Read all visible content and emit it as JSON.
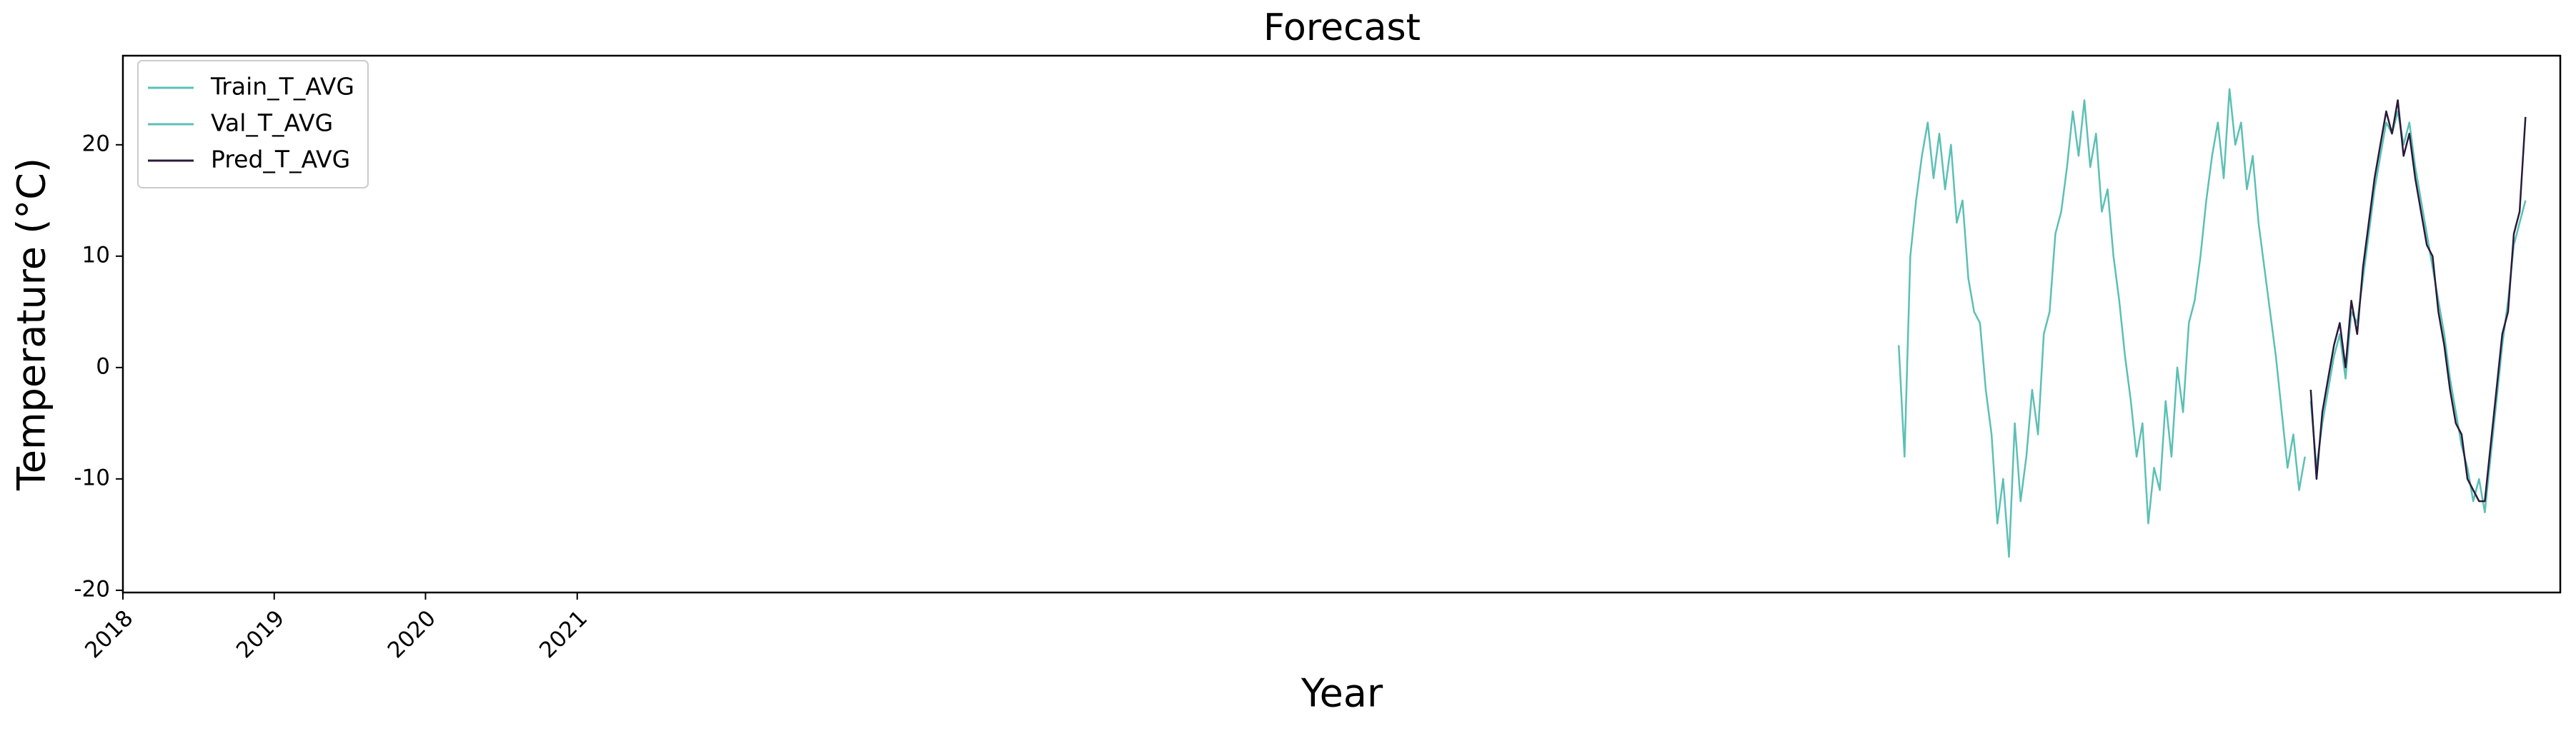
{
  "chart_data": {
    "type": "line",
    "title": "Forecast",
    "x_label": "Year",
    "y_label": "Temperature (°C)",
    "xlim": [
      0,
      5880
    ],
    "xticks": [
      {
        "value": 0,
        "label": "2018"
      },
      {
        "value": 365,
        "label": "2019"
      },
      {
        "value": 730,
        "label": "2020"
      },
      {
        "value": 1096,
        "label": "2021"
      }
    ],
    "ylim": [
      -20.2,
      28
    ],
    "yticks": [
      -20,
      -10,
      0,
      10,
      20
    ],
    "grid": false,
    "legend": "upper left",
    "series": [
      {
        "name": "Train_T_AVG",
        "color": "#5bc0b5",
        "x": [
          4284,
          4298,
          4312,
          4326,
          4340,
          4354,
          4368,
          4382,
          4396,
          4410,
          4424,
          4438,
          4452,
          4466,
          4480,
          4494,
          4508,
          4522,
          4536,
          4550,
          4564,
          4578,
          4592,
          4606,
          4620,
          4634,
          4648,
          4662,
          4676,
          4690,
          4704,
          4718,
          4732,
          4746,
          4760,
          4774,
          4788,
          4802,
          4816,
          4830,
          4844,
          4858,
          4872,
          4886,
          4900,
          4914,
          4928,
          4942,
          4956,
          4970,
          4984,
          4998,
          5012,
          5026,
          5040,
          5054,
          5068,
          5082,
          5096,
          5110,
          5124,
          5138,
          5152,
          5166,
          5180,
          5194,
          5208,
          5222,
          5236,
          5250,
          5264
        ],
        "values": [
          2,
          -8,
          10,
          15,
          19,
          22,
          17,
          21,
          16,
          20,
          13,
          15,
          8,
          5,
          4,
          -2,
          -6,
          -14,
          -10,
          -17,
          -5,
          -12,
          -8,
          -2,
          -6,
          3,
          5,
          12,
          14,
          18,
          23,
          19,
          24,
          18,
          21,
          14,
          16,
          10,
          6,
          1,
          -3,
          -8,
          -5,
          -14,
          -9,
          -11,
          -3,
          -8,
          0,
          -4,
          4,
          6,
          10,
          15,
          19,
          22,
          17,
          25,
          20,
          22,
          16,
          19,
          13,
          9,
          5,
          1,
          -4,
          -9,
          -6,
          -11,
          -8
        ]
      },
      {
        "name": "Val_T_AVG",
        "color": "#5bc0b5",
        "x": [
          5278,
          5292,
          5306,
          5320,
          5334,
          5348,
          5362,
          5376,
          5390,
          5404,
          5418,
          5432,
          5446,
          5460,
          5474,
          5488,
          5502,
          5516,
          5530,
          5544,
          5558,
          5572,
          5586,
          5600,
          5614,
          5628,
          5642,
          5656,
          5670,
          5684,
          5698,
          5712,
          5726,
          5740,
          5754,
          5768,
          5782,
          5796
        ],
        "values": [
          -3,
          -9,
          -5,
          -2,
          1,
          3,
          -1,
          5,
          4,
          8,
          12,
          16,
          19,
          22,
          21,
          23,
          20,
          22,
          18,
          15,
          12,
          9,
          6,
          3,
          -1,
          -4,
          -7,
          -9,
          -12,
          -10,
          -13,
          -8,
          -3,
          2,
          6,
          11,
          13,
          15
        ]
      },
      {
        "name": "Pred_T_AVG",
        "color": "#2a1a3a",
        "x": [
          5278,
          5292,
          5306,
          5320,
          5334,
          5348,
          5362,
          5376,
          5390,
          5404,
          5418,
          5432,
          5446,
          5460,
          5474,
          5488,
          5502,
          5516,
          5530,
          5544,
          5558,
          5572,
          5586,
          5600,
          5614,
          5628,
          5642,
          5656,
          5670,
          5684,
          5698,
          5712,
          5726,
          5740,
          5754,
          5768,
          5782,
          5796
        ],
        "values": [
          -2,
          -10,
          -4,
          -1,
          2,
          4,
          0,
          6,
          3,
          9,
          13,
          17,
          20,
          23,
          21,
          24,
          19,
          21,
          17,
          14,
          11,
          10,
          5,
          2,
          -2,
          -5,
          -6,
          -10,
          -11,
          -12,
          -12,
          -7,
          -2,
          3,
          5,
          12,
          14,
          22.5
        ]
      }
    ]
  }
}
